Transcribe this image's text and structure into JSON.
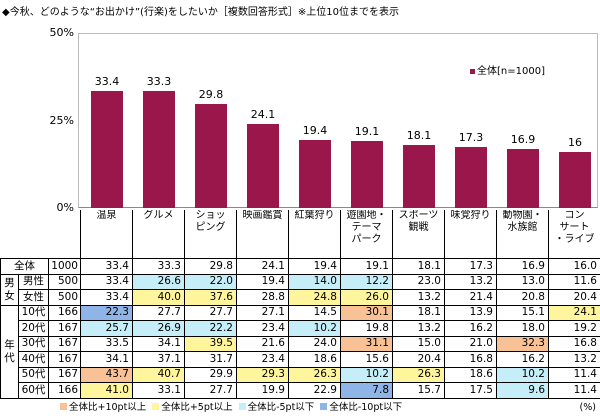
{
  "title": "◆今秋、どのような“お出かけ”(行楽)をしたいか［複数回答形式］※上位10位までを表示",
  "chart_data": {
    "type": "bar",
    "title": "◆今秋、どのような“お出かけ”(行楽)をしたいか［複数回答形式］※上位10位までを表示",
    "categories": [
      "温泉",
      "グルメ",
      "ショッ\nピング",
      "映画鑑賞",
      "紅葉狩り",
      "遊園地・\nテーマ\nパーク",
      "スポーツ\n観戦",
      "味覚狩り",
      "動物園・\n水族館",
      "コン\nサート\n・ライブ"
    ],
    "series": [
      {
        "name": "全体[n=1000]",
        "values": [
          33.4,
          33.3,
          29.8,
          24.1,
          19.4,
          19.1,
          18.1,
          17.3,
          16.9,
          16.0
        ],
        "color": "#99174a"
      }
    ],
    "ylim": [
      0,
      50
    ],
    "yticks": [
      "0%",
      "25%",
      "50%"
    ],
    "legend": "top-right",
    "grid": false
  },
  "table": {
    "rows": [
      {
        "group": "",
        "label": "全体",
        "n": "1000",
        "values": [
          "33.4",
          "33.3",
          "29.8",
          "24.1",
          "19.4",
          "19.1",
          "18.1",
          "17.3",
          "16.9",
          "16.0"
        ],
        "hl": [
          "",
          "",
          "",
          "",
          "",
          "",
          "",
          "",
          "",
          ""
        ]
      },
      {
        "group": "男女",
        "label": "男性",
        "n": "500",
        "values": [
          "33.4",
          "26.6",
          "22.0",
          "19.4",
          "14.0",
          "12.2",
          "23.0",
          "13.2",
          "13.0",
          "11.6"
        ],
        "hl": [
          "",
          "m5",
          "m5",
          "",
          "m5",
          "m5",
          "",
          "",
          "",
          ""
        ]
      },
      {
        "group": "",
        "label": "女性",
        "n": "500",
        "values": [
          "33.4",
          "40.0",
          "37.6",
          "28.8",
          "24.8",
          "26.0",
          "13.2",
          "21.4",
          "20.8",
          "20.4"
        ],
        "hl": [
          "",
          "p5",
          "p5",
          "",
          "p5",
          "p5",
          "",
          "",
          "",
          ""
        ]
      },
      {
        "group": "年代",
        "label": "10代",
        "n": "166",
        "values": [
          "22.3",
          "27.7",
          "27.7",
          "27.1",
          "14.5",
          "30.1",
          "18.1",
          "13.9",
          "15.1",
          "24.1"
        ],
        "hl": [
          "m10",
          "",
          "",
          "",
          "",
          "p10",
          "",
          "",
          "",
          "p5"
        ]
      },
      {
        "group": "",
        "label": "20代",
        "n": "167",
        "values": [
          "25.7",
          "26.9",
          "22.2",
          "23.4",
          "10.2",
          "19.8",
          "13.2",
          "16.2",
          "18.0",
          "19.2"
        ],
        "hl": [
          "m5",
          "m5",
          "m5",
          "",
          "m5",
          "",
          "",
          "",
          "",
          ""
        ]
      },
      {
        "group": "",
        "label": "30代",
        "n": "167",
        "values": [
          "33.5",
          "34.1",
          "39.5",
          "21.6",
          "24.0",
          "31.1",
          "15.0",
          "21.0",
          "32.3",
          "16.8"
        ],
        "hl": [
          "",
          "",
          "p5",
          "",
          "",
          "p10",
          "",
          "",
          "p10",
          ""
        ]
      },
      {
        "group": "",
        "label": "40代",
        "n": "167",
        "values": [
          "34.1",
          "37.1",
          "31.7",
          "23.4",
          "18.6",
          "15.6",
          "20.4",
          "16.8",
          "16.2",
          "13.2"
        ],
        "hl": [
          "",
          "",
          "",
          "",
          "",
          "",
          "",
          "",
          "",
          ""
        ]
      },
      {
        "group": "",
        "label": "50代",
        "n": "167",
        "values": [
          "43.7",
          "40.7",
          "29.9",
          "29.3",
          "26.3",
          "10.2",
          "26.3",
          "18.6",
          "10.2",
          "11.4"
        ],
        "hl": [
          "p10",
          "p5",
          "",
          "p5",
          "p5",
          "m5",
          "p5",
          "",
          "m5",
          ""
        ]
      },
      {
        "group": "",
        "label": "60代",
        "n": "166",
        "values": [
          "41.0",
          "33.1",
          "27.7",
          "19.9",
          "22.9",
          "7.8",
          "15.7",
          "17.5",
          "9.6",
          "11.4"
        ],
        "hl": [
          "p5",
          "",
          "",
          "",
          "",
          "m10",
          "",
          "",
          "m5",
          ""
        ]
      }
    ]
  },
  "highlight_legend": [
    {
      "key": "p10",
      "label": "全体比+10pt以上",
      "color": "#f9c196"
    },
    {
      "key": "p5",
      "label": "全体比+5pt以上",
      "color": "#fff59d"
    },
    {
      "key": "m5",
      "label": "全体比-5pt以下",
      "color": "#c6eef8"
    },
    {
      "key": "m10",
      "label": "全体比-10pt以下",
      "color": "#8fb4e8"
    }
  ],
  "unit": "(%)"
}
